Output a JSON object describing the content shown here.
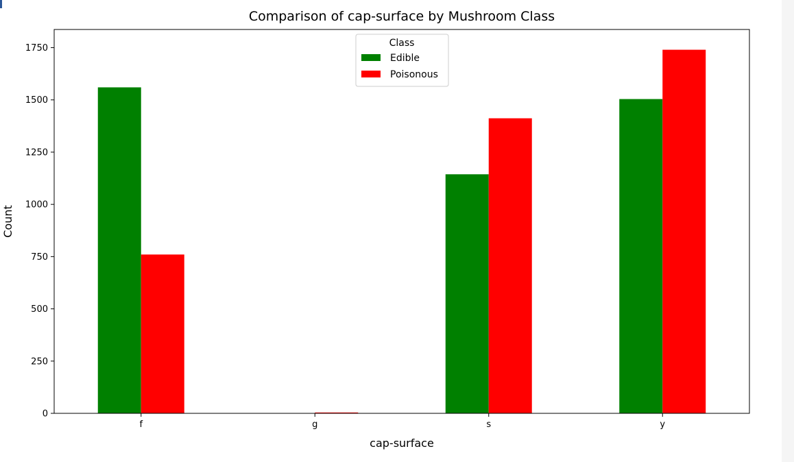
{
  "chart_data": {
    "type": "bar",
    "title": "Comparison of cap-surface by Mushroom Class",
    "xlabel": "cap-surface",
    "ylabel": "Count",
    "categories": [
      "f",
      "g",
      "s",
      "y"
    ],
    "series": [
      {
        "name": "Edible",
        "color": "#008000",
        "values": [
          1560,
          0,
          1144,
          1504
        ]
      },
      {
        "name": "Poisonous",
        "color": "#ff0000",
        "values": [
          760,
          4,
          1412,
          1740
        ]
      }
    ],
    "ylim": [
      0,
      1837
    ],
    "yticks": [
      0,
      250,
      500,
      750,
      1000,
      1250,
      1500,
      1750
    ],
    "legend": {
      "title": "Class",
      "placement": "top-center"
    },
    "grid": false
  }
}
